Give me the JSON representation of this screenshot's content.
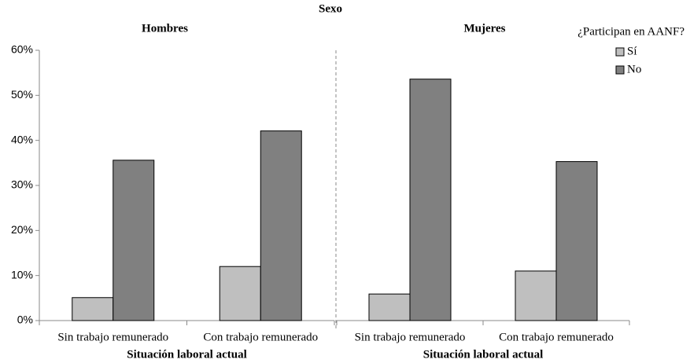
{
  "title": "Sexo",
  "chart_data": [
    {
      "type": "bar",
      "title": "Hombres",
      "xlabel": "Situación laboral actual",
      "categories": [
        "Sin trabajo remunerado",
        "Con trabajo remunerado"
      ],
      "series": [
        {
          "name": "Sí",
          "color": "#bfbfbf",
          "values": [
            5.1,
            12.0
          ]
        },
        {
          "name": "No",
          "color": "#808080",
          "values": [
            35.6,
            42.1
          ]
        }
      ],
      "ylim": [
        0,
        60
      ],
      "yticks": [
        {
          "value": 0,
          "label": "0%"
        },
        {
          "value": 10,
          "label": "10%"
        },
        {
          "value": 20,
          "label": "20%"
        },
        {
          "value": 30,
          "label": "30%"
        },
        {
          "value": 40,
          "label": "40%"
        },
        {
          "value": 50,
          "label": "50%"
        },
        {
          "value": 60,
          "label": "60%"
        }
      ]
    },
    {
      "type": "bar",
      "title": "Mujeres",
      "xlabel": "Situación laboral actual",
      "legend_title": "¿Participan en AANF?",
      "categories": [
        "Sin trabajo remunerado",
        "Con trabajo remunerado"
      ],
      "series": [
        {
          "name": "Sí",
          "color": "#bfbfbf",
          "values": [
            5.9,
            11.0
          ]
        },
        {
          "name": "No",
          "color": "#808080",
          "values": [
            53.6,
            35.3
          ]
        }
      ],
      "ylim": [
        0,
        60
      ]
    }
  ]
}
